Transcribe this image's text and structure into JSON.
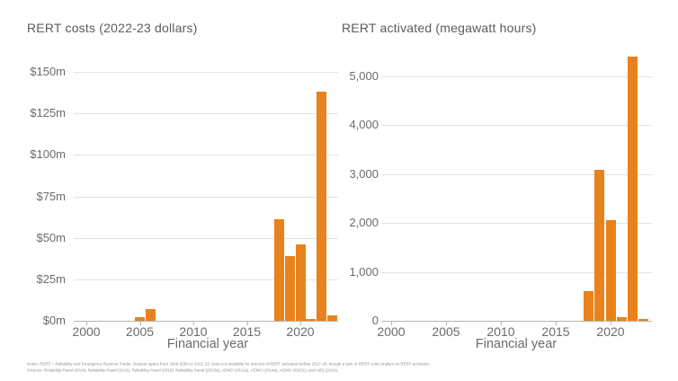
{
  "chart_data": [
    {
      "type": "bar",
      "title": "RERT costs (2022-23 dollars)",
      "xlabel": "Financial year",
      "x": [
        2005,
        2006,
        2018,
        2019,
        2020,
        2021,
        2022,
        2023
      ],
      "values": [
        2,
        7,
        61,
        39,
        46,
        1,
        138,
        3
      ],
      "xlim": [
        1998.5,
        2023.5
      ],
      "ylim": [
        0,
        150
      ],
      "x_tick_labels": [
        "2000",
        "2005",
        "2010",
        "2015",
        "2020"
      ],
      "x_tick_values": [
        2000,
        2005,
        2010,
        2015,
        2020
      ],
      "y_ticks": [
        {
          "value": 0,
          "label": "$0m"
        },
        {
          "value": 25,
          "label": "$25m"
        },
        {
          "value": 50,
          "label": "$50m"
        },
        {
          "value": 75,
          "label": "$75m"
        },
        {
          "value": 100,
          "label": "$100m"
        },
        {
          "value": 125,
          "label": "$125m"
        },
        {
          "value": 150,
          "label": "$150m"
        }
      ],
      "grid": "horizontal",
      "legend": "none"
    },
    {
      "type": "bar",
      "title": "RERT activated (megawatt hours)",
      "xlabel": "Financial year",
      "x": [
        2018,
        2019,
        2020,
        2021,
        2022,
        2023
      ],
      "values": [
        600,
        3080,
        2060,
        80,
        5400,
        30
      ],
      "xlim": [
        1998.5,
        2023.5
      ],
      "ylim": [
        0,
        5000
      ],
      "x_tick_labels": [
        "2000",
        "2005",
        "2010",
        "2015",
        "2020"
      ],
      "x_tick_values": [
        2000,
        2005,
        2010,
        2015,
        2020
      ],
      "y_ticks": [
        {
          "value": 0,
          "label": "0"
        },
        {
          "value": 1000,
          "label": "1,000"
        },
        {
          "value": 2000,
          "label": "2,000"
        },
        {
          "value": 3000,
          "label": "3,000"
        },
        {
          "value": 4000,
          "label": "4,000"
        },
        {
          "value": 5000,
          "label": "5,000"
        }
      ],
      "grid": "horizontal",
      "legend": "none"
    }
  ],
  "footnotes": {
    "notes": "Notes: RERT = Reliability and Emergency Reserve Trader. Dataset spans from 1999-2000 to 2022-23. Data not available for amount of RERT activated before 2017-18, though a lack of RERT costs implies no RERT activation.",
    "sources": "Sources: Reliability Panel (2014), Reliability Panel (2016), Reliability Panel (2018), Reliability Panel (2023a), AEMO (2012a), AEMO (2014a), AEMO (2023c), and ABS (2024)."
  },
  "colors": {
    "bar": "#E8821D",
    "grid": "#E2E2E2",
    "axis": "#B5B5B5",
    "title_text": "#5C5C5C",
    "tick_text": "#6B6B6B",
    "footnote_text": "#8F8F8F"
  }
}
